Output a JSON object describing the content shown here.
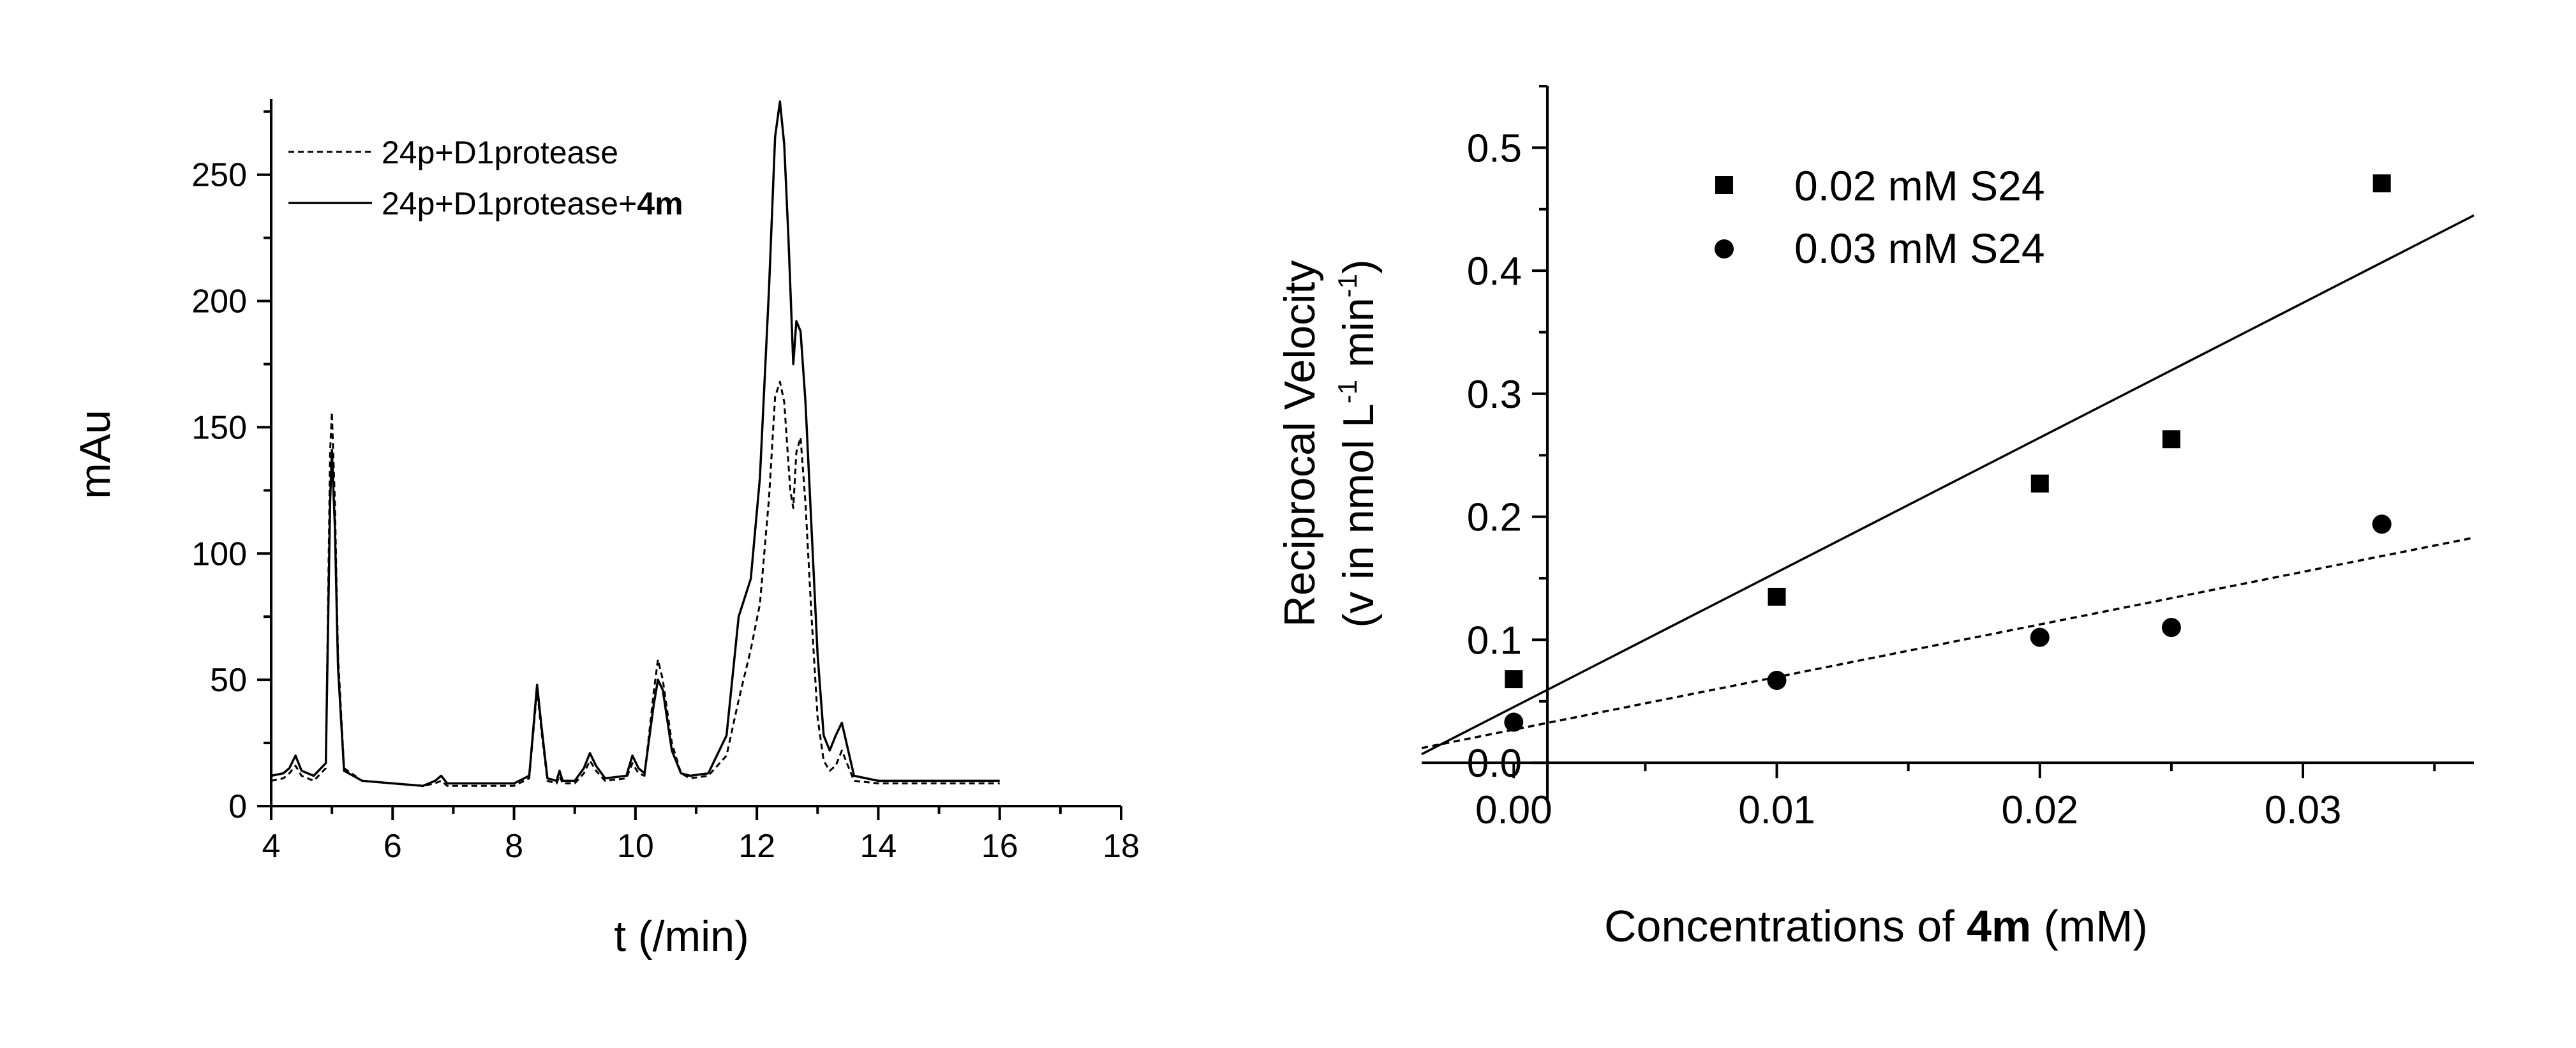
{
  "chart_data": [
    {
      "type": "line",
      "title": "",
      "xlabel": "t (/min)",
      "ylabel": "mAu",
      "xlim": [
        4,
        18
      ],
      "ylim": [
        0,
        280
      ],
      "xticks": [
        4,
        6,
        8,
        10,
        12,
        14,
        16,
        18
      ],
      "yticks": [
        0,
        50,
        100,
        150,
        200,
        250
      ],
      "grid": false,
      "legend_position": "top-left",
      "series": [
        {
          "name": "24p+D1protease",
          "name_bold_part": "",
          "style": "dashed",
          "x": [
            4.0,
            4.2,
            4.3,
            4.4,
            4.5,
            4.7,
            4.9,
            4.97,
            5.0,
            5.05,
            5.1,
            5.2,
            5.5,
            6.0,
            6.5,
            6.7,
            6.8,
            6.9,
            7.5,
            8.0,
            8.25,
            8.38,
            8.45,
            8.55,
            8.7,
            8.75,
            8.8,
            9.0,
            9.15,
            9.25,
            9.35,
            9.5,
            9.85,
            9.95,
            10.05,
            10.15,
            10.3,
            10.37,
            10.45,
            10.6,
            10.75,
            10.9,
            11.2,
            11.5,
            11.7,
            11.9,
            12.05,
            12.2,
            12.3,
            12.38,
            12.45,
            12.55,
            12.6,
            12.65,
            12.72,
            12.8,
            12.9,
            13.0,
            13.1,
            13.2,
            13.3,
            13.4,
            13.6,
            14.0,
            15.0,
            16.0
          ],
          "values": [
            10,
            11,
            13,
            16,
            12,
            10,
            15,
            140,
            156,
            120,
            60,
            15,
            10,
            9,
            8,
            9,
            10,
            8,
            8,
            8,
            11,
            46,
            30,
            10,
            9,
            12,
            9,
            9,
            13,
            18,
            14,
            10,
            11,
            17,
            13,
            12,
            45,
            58,
            50,
            25,
            13,
            11,
            12,
            20,
            42,
            62,
            80,
            122,
            162,
            168,
            160,
            125,
            118,
            140,
            146,
            120,
            75,
            35,
            18,
            14,
            16,
            22,
            10,
            9,
            9,
            9
          ]
        },
        {
          "name": "24p+D1protease+",
          "name_bold_part": "4m",
          "style": "solid",
          "x": [
            4.0,
            4.2,
            4.3,
            4.4,
            4.5,
            4.7,
            4.9,
            4.97,
            5.0,
            5.05,
            5.1,
            5.2,
            5.5,
            6.0,
            6.5,
            6.7,
            6.8,
            6.9,
            7.5,
            8.0,
            8.25,
            8.38,
            8.45,
            8.55,
            8.7,
            8.75,
            8.8,
            9.0,
            9.15,
            9.25,
            9.35,
            9.5,
            9.85,
            9.95,
            10.05,
            10.15,
            10.3,
            10.37,
            10.45,
            10.6,
            10.75,
            10.9,
            11.2,
            11.5,
            11.7,
            11.9,
            12.05,
            12.2,
            12.3,
            12.38,
            12.45,
            12.52,
            12.6,
            12.65,
            12.72,
            12.8,
            12.9,
            13.0,
            13.1,
            13.2,
            13.3,
            13.4,
            13.6,
            14.0,
            15.0,
            16.0
          ],
          "values": [
            12,
            13,
            15,
            20,
            14,
            12,
            17,
            120,
            141,
            110,
            55,
            14,
            10,
            9,
            8,
            10,
            12,
            9,
            9,
            9,
            12,
            48,
            32,
            11,
            10,
            14,
            10,
            10,
            15,
            21,
            16,
            11,
            12,
            20,
            15,
            13,
            40,
            50,
            46,
            22,
            13,
            12,
            13,
            28,
            75,
            90,
            130,
            205,
            265,
            279,
            262,
            225,
            175,
            192,
            188,
            160,
            110,
            60,
            28,
            22,
            28,
            33,
            12,
            10,
            10,
            10
          ]
        }
      ]
    },
    {
      "type": "scatter",
      "title": "",
      "xlabel_prefix": "Concentrations of ",
      "xlabel_bold": "4m",
      "xlabel_suffix": " (mM)",
      "ylabel_line1": "Reciprocal Velocity",
      "ylabel_line2_a": "(v in nmol L",
      "ylabel_line2_sup1": "-1",
      "ylabel_line2_b": " min",
      "ylabel_line2_sup2": "-1",
      "ylabel_line2_c": ")",
      "xlim": [
        -0.0035,
        0.0365
      ],
      "ylim": [
        -0.03,
        0.55
      ],
      "xticks": [
        0.0,
        0.01,
        0.02,
        0.03
      ],
      "xtick_labels": [
        "0.00",
        "0.01",
        "0.02",
        "0.03"
      ],
      "yticks": [
        0.0,
        0.1,
        0.2,
        0.3,
        0.4,
        0.5
      ],
      "ytick_labels": [
        "0.0",
        "0.1",
        "0.2",
        "0.3",
        "0.4",
        "0.5"
      ],
      "grid": false,
      "legend_position": "top-left",
      "series": [
        {
          "name": "0.02 mM S24",
          "marker": "square",
          "x": [
            0.0,
            0.01,
            0.02,
            0.025,
            0.033
          ],
          "y": [
            0.068,
            0.135,
            0.227,
            0.263,
            0.471
          ],
          "fit": {
            "style": "solid",
            "x": [
              -0.0035,
              0.0365
            ],
            "y": [
              0.007,
              0.445
            ]
          }
        },
        {
          "name": "0.03 mM S24",
          "marker": "circle",
          "x": [
            0.0,
            0.01,
            0.02,
            0.025,
            0.033
          ],
          "y": [
            0.033,
            0.067,
            0.102,
            0.11,
            0.194
          ],
          "fit": {
            "style": "dashed",
            "x": [
              -0.0035,
              0.0365
            ],
            "y": [
              0.012,
              0.183
            ]
          }
        }
      ]
    }
  ]
}
